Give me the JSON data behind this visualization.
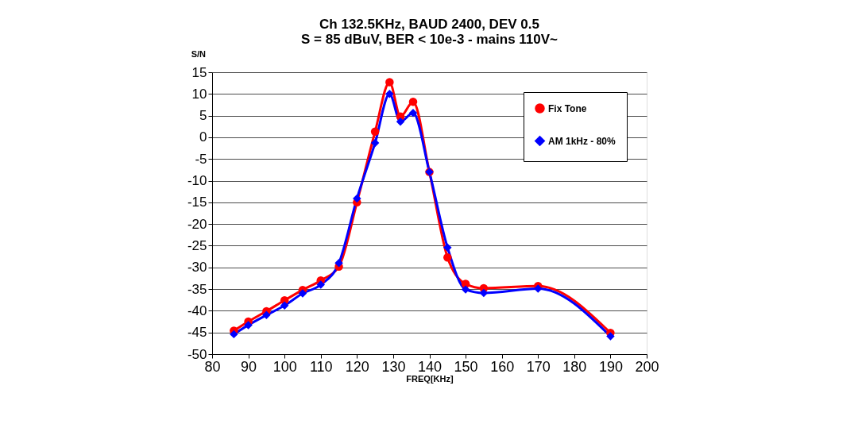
{
  "chart_data": {
    "type": "line",
    "title": "Ch 132.5KHz, BAUD 2400, DEV 0.5",
    "subtitle": "S = 85 dBuV, BER < 10e-3 - mains 110V~",
    "xlabel": "FREQ[KHz]",
    "ylabel": "S/N",
    "x": [
      86,
      90,
      95,
      100,
      105,
      110,
      115,
      120,
      125,
      129,
      132,
      135.5,
      140,
      145,
      150,
      155,
      170,
      190
    ],
    "series": [
      {
        "name": "Fix Tone",
        "color": "#ff0000",
        "marker": "circle",
        "values": [
          -44.6,
          -42.5,
          -40.1,
          -37.6,
          -35.2,
          -33.0,
          -29.8,
          -15.0,
          1.3,
          12.7,
          4.8,
          8.2,
          -8.0,
          -27.7,
          -33.8,
          -34.8,
          -34.3,
          -45.1
        ]
      },
      {
        "name": "AM 1kHz - 80%",
        "color": "#0000ff",
        "marker": "diamond",
        "values": [
          -45.4,
          -43.3,
          -41.0,
          -38.8,
          -36.0,
          -34.0,
          -29.0,
          -14.1,
          -1.3,
          10.0,
          3.6,
          5.6,
          -8.0,
          -25.4,
          -35.1,
          -35.9,
          -34.9,
          -45.9
        ]
      }
    ],
    "xlim": [
      80,
      200
    ],
    "xticks": [
      80,
      90,
      100,
      110,
      120,
      130,
      140,
      150,
      160,
      170,
      180,
      190,
      200
    ],
    "ylim": [
      -50,
      15
    ],
    "yticks": [
      -50,
      -45,
      -40,
      -35,
      -30,
      -25,
      -20,
      -15,
      -10,
      -5,
      0,
      5,
      10,
      15
    ],
    "grid": "y",
    "legend": "top right",
    "line_style": "solid"
  }
}
